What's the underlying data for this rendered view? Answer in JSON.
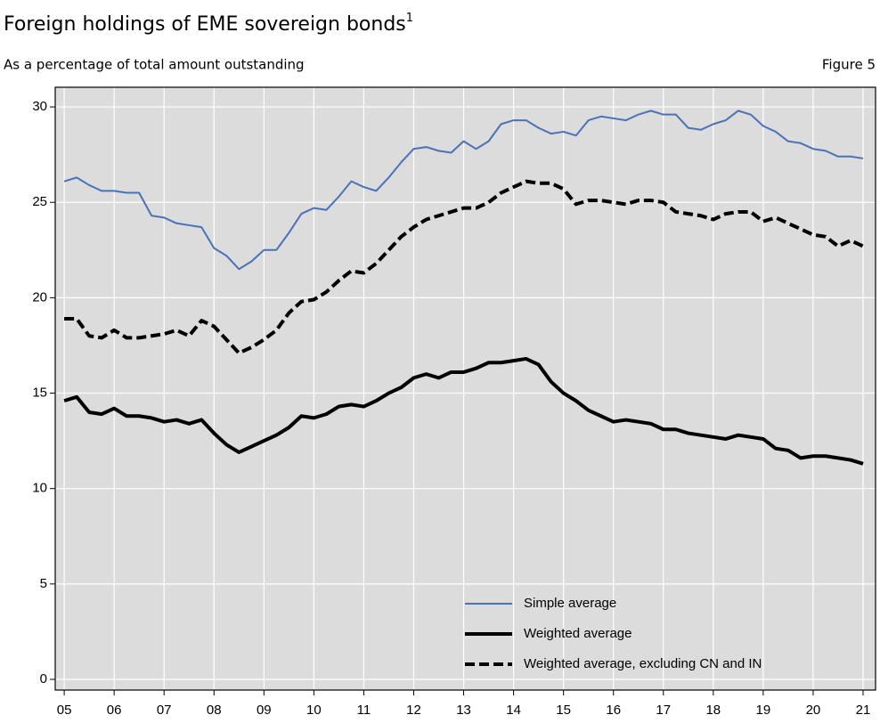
{
  "chart_data": {
    "type": "line",
    "title": "Foreign holdings of EME sovereign bonds",
    "title_footnote": "1",
    "subtitle": "As a percentage of total amount outstanding",
    "figure_label": "Figure 5",
    "x": [
      2005,
      2005.25,
      2005.5,
      2005.75,
      2006,
      2006.25,
      2006.5,
      2006.75,
      2007,
      2007.25,
      2007.5,
      2007.75,
      2008,
      2008.25,
      2008.5,
      2008.75,
      2009,
      2009.25,
      2009.5,
      2009.75,
      2010,
      2010.25,
      2010.5,
      2010.75,
      2011,
      2011.25,
      2011.5,
      2011.75,
      2012,
      2012.25,
      2012.5,
      2012.75,
      2013,
      2013.25,
      2013.5,
      2013.75,
      2014,
      2014.25,
      2014.5,
      2014.75,
      2015,
      2015.25,
      2015.5,
      2015.75,
      2016,
      2016.25,
      2016.5,
      2016.75,
      2017,
      2017.25,
      2017.5,
      2017.75,
      2018,
      2018.25,
      2018.5,
      2018.75,
      2019,
      2019.25,
      2019.5,
      2019.75,
      2020,
      2020.25,
      2020.5,
      2020.75,
      2021
    ],
    "series": [
      {
        "name": "Simple average",
        "color": "#4a72b8",
        "line_style": "solid",
        "values": [
          26.1,
          26.3,
          25.9,
          25.6,
          25.6,
          25.5,
          25.5,
          24.3,
          24.2,
          23.9,
          23.8,
          23.7,
          22.6,
          22.2,
          21.5,
          21.9,
          22.5,
          22.5,
          23.4,
          24.4,
          24.7,
          24.6,
          25.3,
          26.1,
          25.8,
          25.6,
          26.3,
          27.1,
          27.8,
          27.9,
          27.7,
          27.6,
          28.2,
          27.8,
          28.2,
          29.1,
          29.3,
          29.3,
          28.9,
          28.6,
          28.7,
          28.5,
          29.3,
          29.5,
          29.4,
          29.3,
          29.6,
          29.8,
          29.6,
          29.6,
          28.9,
          28.8,
          29.1,
          29.3,
          29.8,
          29.6,
          29.0,
          28.7,
          28.2,
          28.1,
          27.8,
          27.7,
          27.4,
          27.4,
          27.3
        ]
      },
      {
        "name": "Weighted average",
        "color": "#000000",
        "line_style": "solid",
        "values": [
          14.6,
          14.8,
          14.0,
          13.9,
          14.2,
          13.8,
          13.8,
          13.7,
          13.5,
          13.6,
          13.4,
          13.6,
          12.9,
          12.3,
          11.9,
          12.2,
          12.5,
          12.8,
          13.2,
          13.8,
          13.7,
          13.9,
          14.3,
          14.4,
          14.3,
          14.6,
          15.0,
          15.3,
          15.8,
          16.0,
          15.8,
          16.1,
          16.1,
          16.3,
          16.6,
          16.6,
          16.7,
          16.8,
          16.5,
          15.6,
          15.0,
          14.6,
          14.1,
          13.8,
          13.5,
          13.6,
          13.5,
          13.4,
          13.1,
          13.1,
          12.9,
          12.8,
          12.7,
          12.6,
          12.8,
          12.7,
          12.6,
          12.1,
          12.0,
          11.6,
          11.7,
          11.7,
          11.6,
          11.5,
          11.3
        ]
      },
      {
        "name": "Weighted average, excluding CN and IN",
        "color": "#000000",
        "line_style": "dashed",
        "values": [
          18.9,
          18.9,
          18.0,
          17.9,
          18.3,
          17.9,
          17.9,
          18.0,
          18.1,
          18.3,
          18.0,
          18.8,
          18.5,
          17.8,
          17.1,
          17.4,
          17.8,
          18.3,
          19.2,
          19.8,
          19.9,
          20.3,
          20.9,
          21.4,
          21.3,
          21.8,
          22.5,
          23.2,
          23.7,
          24.1,
          24.3,
          24.5,
          24.7,
          24.7,
          25.0,
          25.5,
          25.8,
          26.1,
          26.0,
          26.0,
          25.7,
          24.9,
          25.1,
          25.1,
          25.0,
          24.9,
          25.1,
          25.1,
          25.0,
          24.5,
          24.4,
          24.3,
          24.1,
          24.4,
          24.5,
          24.5,
          24.0,
          24.2,
          23.9,
          23.6,
          23.3,
          23.2,
          22.7,
          23.0,
          22.7
        ]
      }
    ],
    "xlim": [
      2004.82,
      2021.25
    ],
    "xticks": [
      {
        "value": 2005,
        "label": "05"
      },
      {
        "value": 2006,
        "label": "06"
      },
      {
        "value": 2007,
        "label": "07"
      },
      {
        "value": 2008,
        "label": "08"
      },
      {
        "value": 2009,
        "label": "09"
      },
      {
        "value": 2010,
        "label": "10"
      },
      {
        "value": 2011,
        "label": "11"
      },
      {
        "value": 2012,
        "label": "12"
      },
      {
        "value": 2013,
        "label": "13"
      },
      {
        "value": 2014,
        "label": "14"
      },
      {
        "value": 2015,
        "label": "15"
      },
      {
        "value": 2016,
        "label": "16"
      },
      {
        "value": 2017,
        "label": "17"
      },
      {
        "value": 2018,
        "label": "18"
      },
      {
        "value": 2019,
        "label": "19"
      },
      {
        "value": 2020,
        "label": "20"
      },
      {
        "value": 2021,
        "label": "21"
      }
    ],
    "ylim": [
      -0.56,
      31.03
    ],
    "yticks": [
      0,
      5,
      10,
      15,
      20,
      25,
      30
    ],
    "grid": true,
    "legend": "lower right"
  }
}
